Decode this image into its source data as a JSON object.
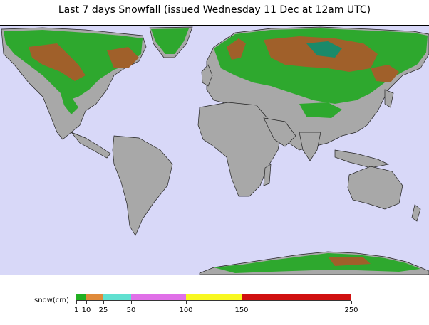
{
  "title": "Last 7 days Snowfall (issued Wednesday 11 Dec at 12am UTC)",
  "colors": {
    "ocean": "#d8d8f8",
    "land": "#a8a8a8",
    "snow_light": "#2ea82e",
    "snow_moderate": "#a0602a",
    "snow_heavy": "#1a8a6a"
  },
  "legend": {
    "unit_label": "snow(cm)",
    "bins": [
      {
        "from": 1,
        "to": 10,
        "color": "#22b022"
      },
      {
        "from": 10,
        "to": 25,
        "color": "#e08a3a"
      },
      {
        "from": 25,
        "to": 50,
        "color": "#60e0d0"
      },
      {
        "from": 50,
        "to": 100,
        "color": "#e070e8"
      },
      {
        "from": 100,
        "to": 150,
        "color": "#f8f820"
      },
      {
        "from": 150,
        "to": 250,
        "color": "#d01010"
      }
    ],
    "tick_labels": [
      "1",
      "10",
      "25",
      "50",
      "100",
      "150",
      "250"
    ]
  }
}
